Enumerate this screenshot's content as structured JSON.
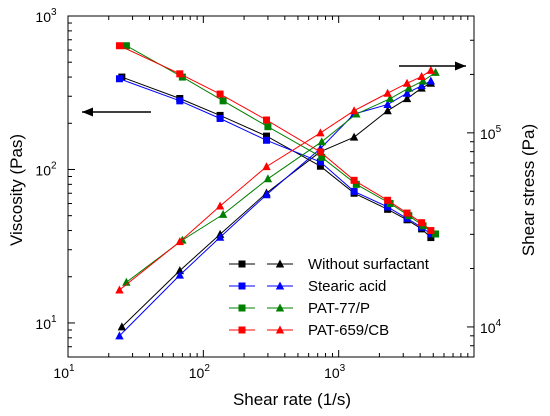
{
  "chart_data": {
    "type": "line",
    "x_axis": {
      "label": "Shear rate (1/s)",
      "scale": "log",
      "range": [
        10,
        10000
      ],
      "ticks": [
        {
          "base": "10",
          "exp": "1",
          "value": 10
        },
        {
          "base": "10",
          "exp": "2",
          "value": 100
        },
        {
          "base": "10",
          "exp": "3",
          "value": 1000
        }
      ]
    },
    "y_left": {
      "label": "Viscosity (Pas)",
      "scale": "log",
      "range": [
        6,
        1000
      ],
      "ticks": [
        {
          "base": "10",
          "exp": "1",
          "value": 10
        },
        {
          "base": "10",
          "exp": "2",
          "value": 100
        },
        {
          "base": "10",
          "exp": "3",
          "value": 1000
        }
      ]
    },
    "y_right": {
      "label": "Shear stress (Pa)",
      "scale": "log",
      "range": [
        7000,
        400000
      ],
      "ticks": [
        {
          "base": "10",
          "exp": "4",
          "value": 10000
        },
        {
          "base": "10",
          "exp": "5",
          "value": 100000
        }
      ]
    },
    "series": [
      {
        "name": "Without surfactant",
        "color": "#000000",
        "viscosity": {
          "x": [
            25,
            67,
            133,
            293,
            733,
            1300,
            2300,
            3200,
            4100,
            4800
          ],
          "y": [
            400,
            290,
            225,
            165,
            105,
            70,
            55,
            47,
            41,
            36
          ]
        },
        "stress": {
          "x": [
            25,
            67,
            133,
            293,
            733,
            1300,
            2300,
            3200,
            4100,
            4800
          ],
          "y": [
            10000,
            19500,
            30000,
            49000,
            80000,
            95000,
            130000,
            150000,
            170000,
            180000
          ]
        }
      },
      {
        "name": "Stearic acid",
        "color": "#0000ff",
        "viscosity": {
          "x": [
            24,
            67,
            133,
            293,
            733,
            1300,
            2300,
            3200,
            4100,
            4800
          ],
          "y": [
            390,
            280,
            215,
            155,
            112,
            72,
            57,
            48,
            42,
            38
          ]
        },
        "stress": {
          "x": [
            24,
            67,
            133,
            293,
            733,
            1300,
            2300,
            3200,
            4100,
            4800
          ],
          "y": [
            9000,
            18500,
            29000,
            48000,
            83000,
            125000,
            140000,
            160000,
            175000,
            185000
          ]
        }
      },
      {
        "name": "PAT-77/P",
        "color": "#008000",
        "viscosity": {
          "x": [
            27,
            70,
            140,
            300,
            750,
            1350,
            2400,
            3300,
            4200,
            5200
          ],
          "y": [
            640,
            400,
            280,
            190,
            120,
            80,
            60,
            50,
            43,
            38
          ]
        },
        "stress": {
          "x": [
            27,
            70,
            140,
            300,
            750,
            1350,
            2400,
            3300,
            4200,
            5200
          ],
          "y": [
            17000,
            28000,
            38000,
            58000,
            90000,
            125000,
            150000,
            170000,
            185000,
            205000
          ]
        }
      },
      {
        "name": "PAT-659/CB",
        "color": "#ff0000",
        "viscosity": {
          "x": [
            24,
            67,
            133,
            293,
            733,
            1300,
            2300,
            3200,
            4100,
            4800
          ],
          "y": [
            640,
            420,
            310,
            210,
            130,
            85,
            63,
            52,
            45,
            40
          ]
        },
        "stress": {
          "x": [
            24,
            67,
            133,
            293,
            733,
            1300,
            2300,
            3200,
            4100,
            4800
          ],
          "y": [
            15500,
            27500,
            42000,
            67000,
            100000,
            130000,
            160000,
            180000,
            195000,
            210000
          ]
        }
      }
    ],
    "legend_position": "bottom-right",
    "grid": false,
    "annotations": [
      {
        "type": "arrow",
        "direction": "left",
        "refers_to": "left-axis"
      },
      {
        "type": "arrow",
        "direction": "right",
        "refers_to": "right-axis"
      }
    ]
  }
}
